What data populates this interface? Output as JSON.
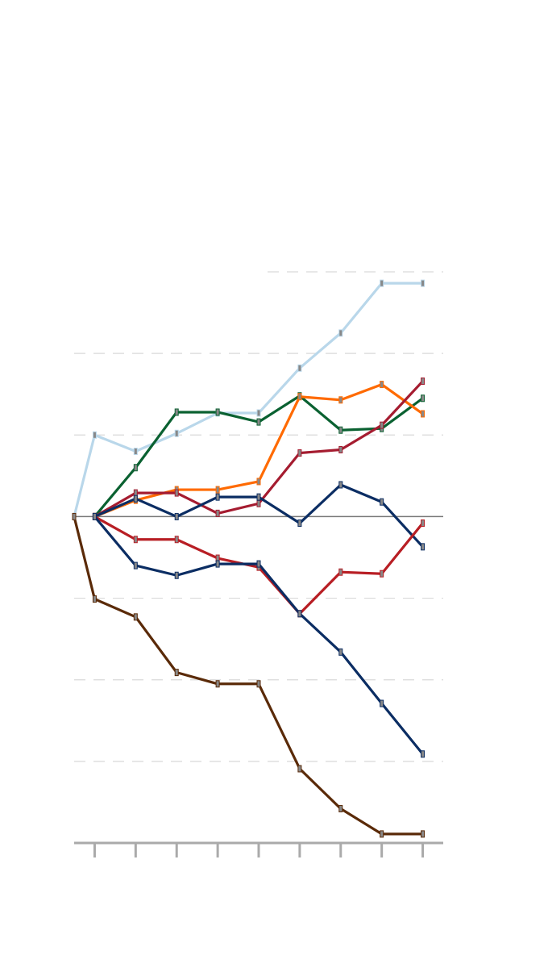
{
  "chart_data": {
    "type": "line",
    "x": [
      -0.5,
      0,
      1,
      2,
      3,
      4,
      5,
      6,
      7,
      8
    ],
    "xlim": [
      -0.5,
      8.5
    ],
    "xticks": [
      0,
      1,
      2,
      3,
      4,
      5,
      6,
      7,
      8
    ],
    "ylim": [
      -40,
      30
    ],
    "yticks": [
      -30,
      -20,
      -10,
      10,
      20,
      30
    ],
    "grid": true,
    "series": [
      {
        "color": "#b9d7ea",
        "values": [
          0,
          10,
          8,
          10.2,
          12.7,
          12.7,
          18.2,
          22.5,
          28.6,
          28.6
        ]
      },
      {
        "color": "#5a2a08",
        "values": [
          0,
          -10.1,
          -12.3,
          -19.1,
          -20.5,
          -20.5,
          -30.9,
          -35.8,
          -38.9,
          -38.9
        ]
      },
      {
        "color": "#0a6131",
        "values": [
          null,
          0,
          6,
          12.8,
          12.8,
          11.6,
          14.8,
          10.6,
          10.8,
          14.5
        ]
      },
      {
        "color": "#ff6a00",
        "values": [
          null,
          0,
          2,
          3.3,
          3.3,
          4.3,
          14.7,
          14.3,
          16.2,
          12.6
        ]
      },
      {
        "color": "#a51c30",
        "values": [
          null,
          0,
          2.9,
          2.9,
          0.4,
          1.6,
          7.8,
          8.2,
          11.2,
          16.6
        ]
      },
      {
        "color": "#0b2d63",
        "values": [
          null,
          0,
          2.2,
          0,
          2.4,
          2.4,
          -0.8,
          3.9,
          1.8,
          -3.7
        ]
      },
      {
        "color": "#b81e24",
        "values": [
          null,
          0,
          -2.8,
          -2.8,
          -5.1,
          -6.2,
          -11.9,
          -6.8,
          -7,
          -0.8
        ]
      },
      {
        "color": "#0b2d63",
        "values": [
          null,
          0,
          -6,
          -7.2,
          -5.8,
          -5.8,
          -11.9,
          -16.6,
          -22.9,
          -29.1
        ]
      }
    ]
  }
}
